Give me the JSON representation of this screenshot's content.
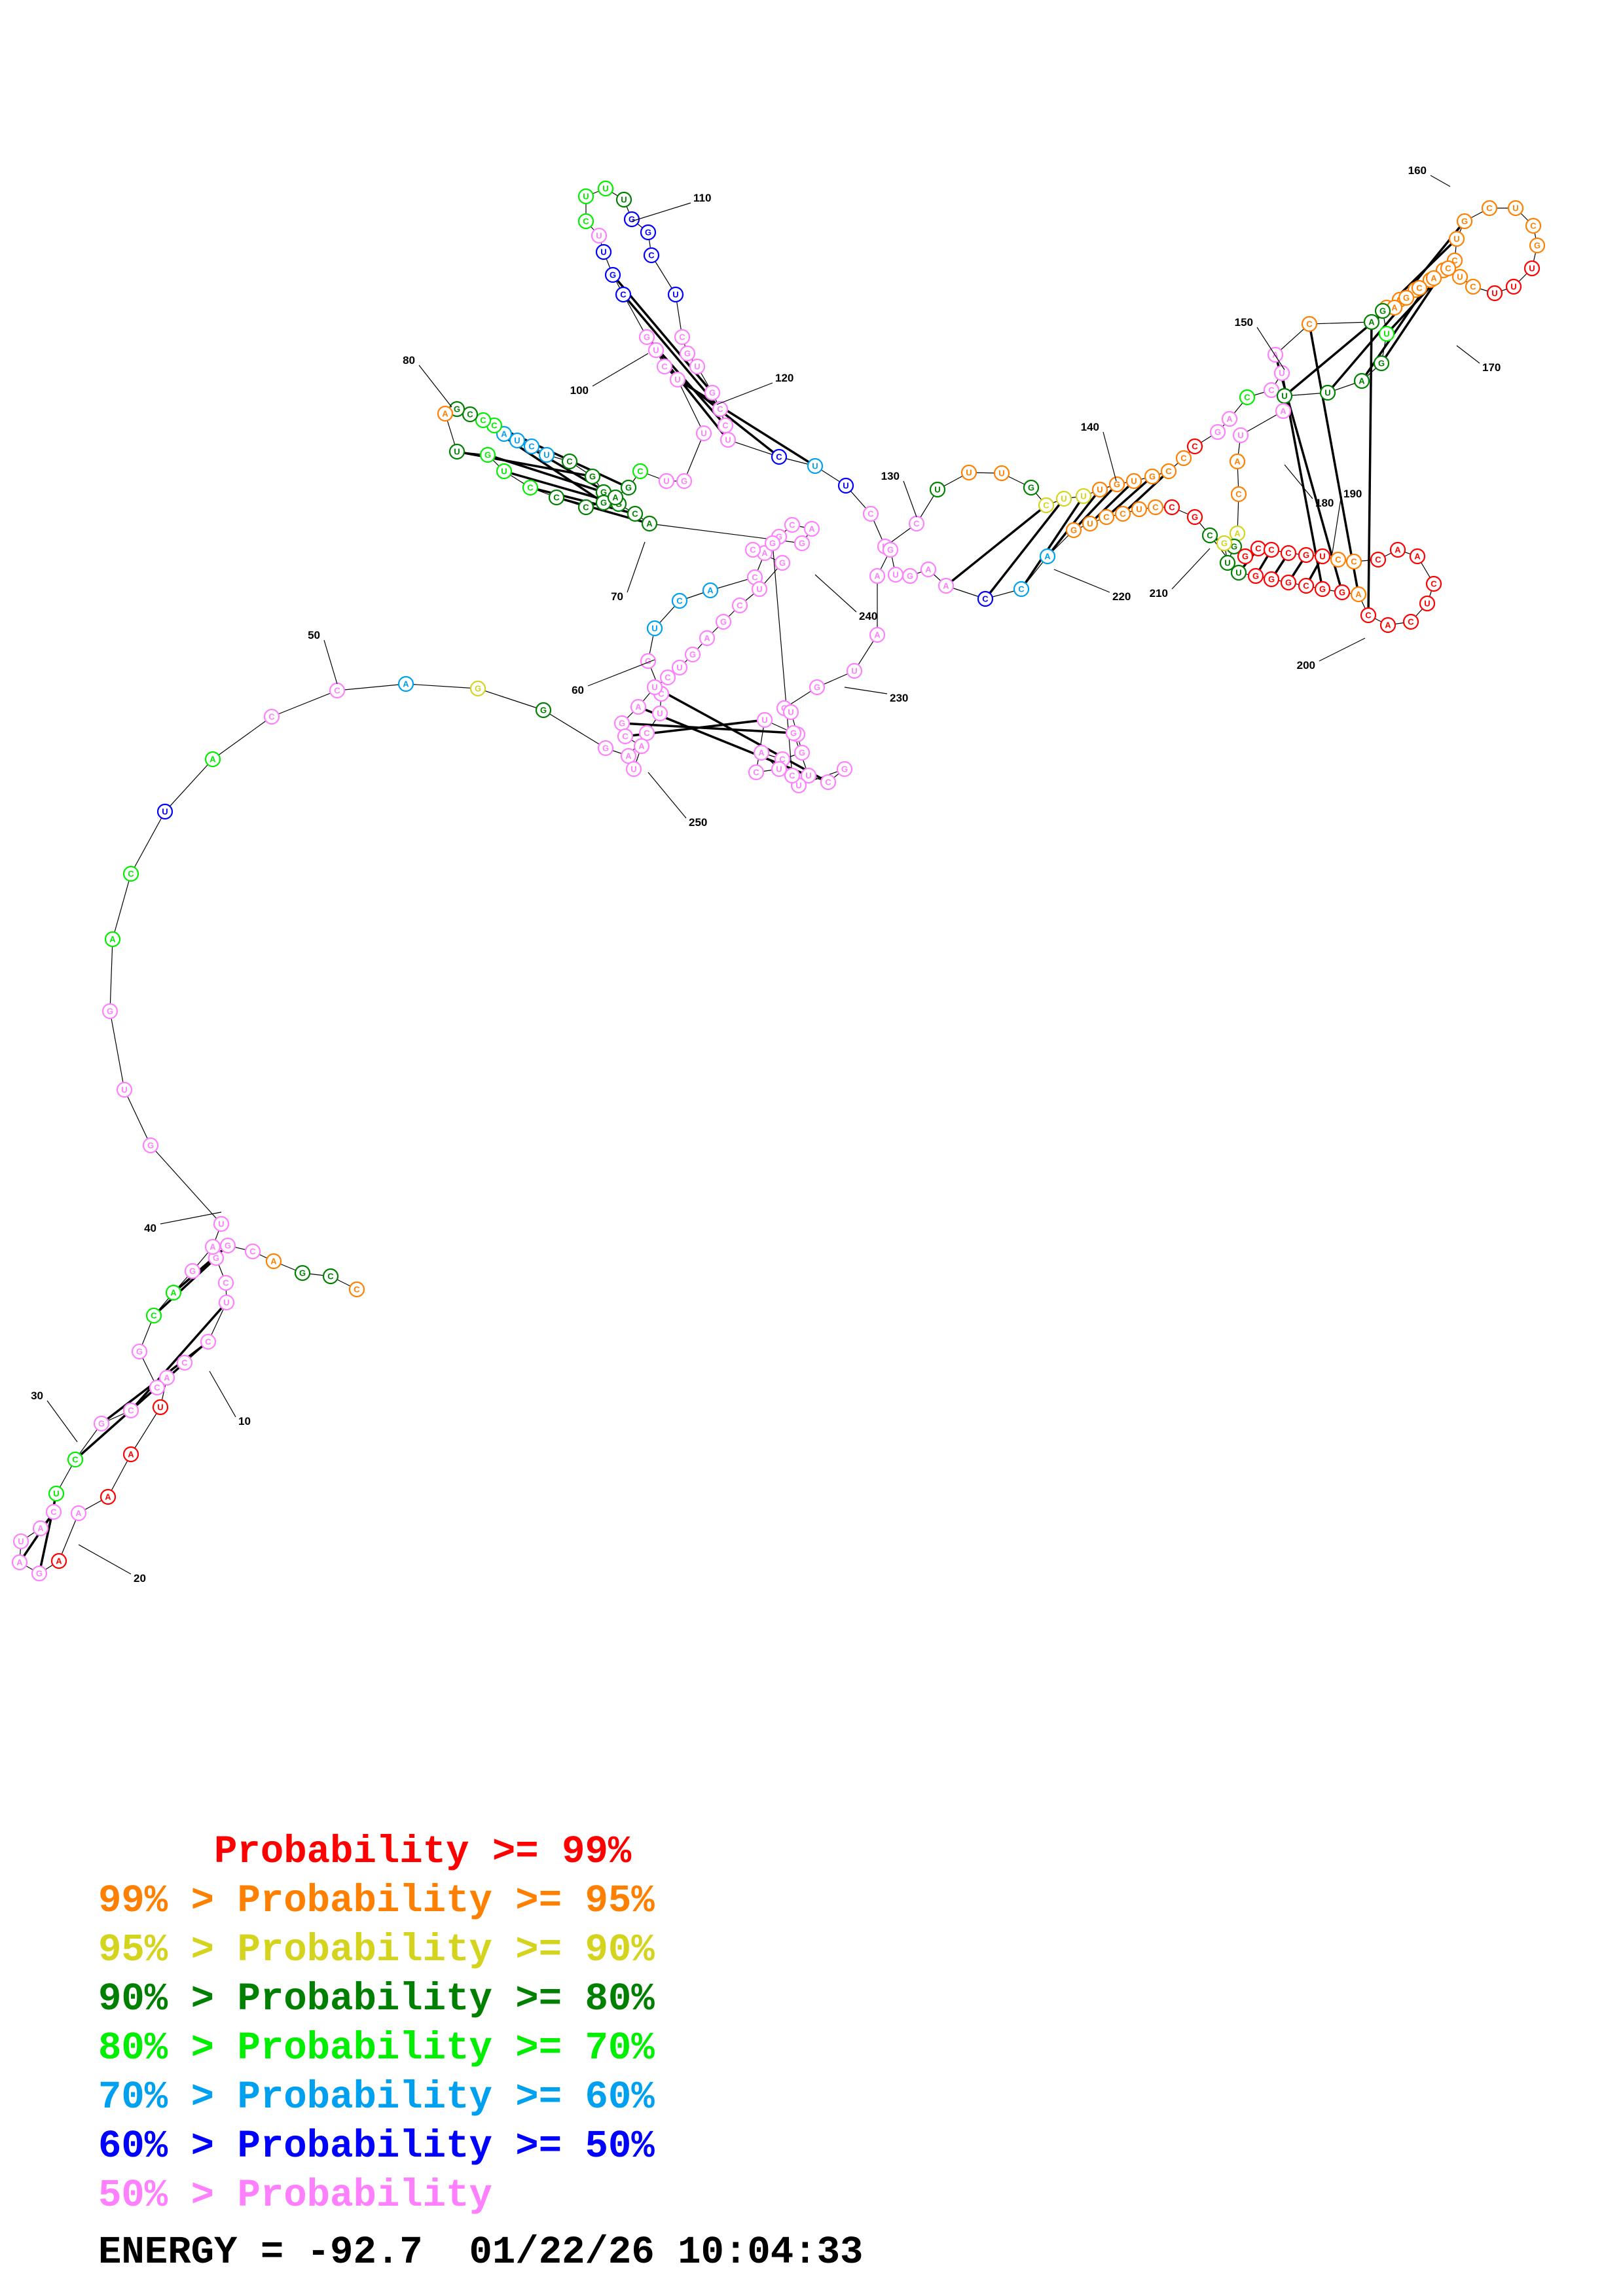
{
  "colors": {
    "p99": "#ff0000",
    "p95": "#ff8000",
    "p90": "#d4d41e",
    "p80": "#008000",
    "p70": "#00ee00",
    "p60": "#00a0f0",
    "p50": "#0000ff",
    "plt50": "#ff80ff",
    "text": "#000000"
  },
  "legend": [
    {
      "range": "     ",
      "label": "Probability >= 99%",
      "color": "#ff0000"
    },
    {
      "range": "99% > ",
      "label": "Probability >= 95%",
      "color": "#ff8000"
    },
    {
      "range": "95% > ",
      "label": "Probability >= 90%",
      "color": "#d4d41e"
    },
    {
      "range": "90% > ",
      "label": "Probability >= 80%",
      "color": "#008000"
    },
    {
      "range": "80% > ",
      "label": "Probability >= 70%",
      "color": "#00ee00"
    },
    {
      "range": "70% > ",
      "label": "Probability >= 60%",
      "color": "#00a0f0"
    },
    {
      "range": "60% > ",
      "label": "Probability >= 50%",
      "color": "#0000ff"
    },
    {
      "range": "50% > ",
      "label": "Probability",
      "color": "#ff80ff"
    }
  ],
  "footer": {
    "energy_label": "ENERGY = ",
    "energy_value": "-92.7",
    "date": "01/22/26",
    "time": "10:04:33"
  },
  "position_labels": [
    "10",
    "20",
    "30",
    "40",
    "50",
    "60",
    "70",
    "80",
    "100",
    "110",
    "120",
    "130",
    "140",
    "150",
    "160",
    "170",
    "180",
    "190",
    "200",
    "210",
    "220",
    "230",
    "240",
    "250"
  ],
  "prob_classes": [
    "p99",
    "p95",
    "p90",
    "p80",
    "p70",
    "p60",
    "p50",
    "plt50"
  ]
}
